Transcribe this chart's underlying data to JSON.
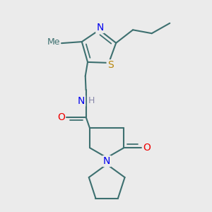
{
  "bg_color": "#ebebeb",
  "bond_color": "#3d7070",
  "bond_width": 1.5,
  "atom_colors": {
    "N": "#0000ee",
    "O": "#ee0000",
    "S": "#b8860b",
    "H": "#8888aa",
    "C": "#3d7070"
  },
  "fs": 10,
  "fs_small": 9
}
